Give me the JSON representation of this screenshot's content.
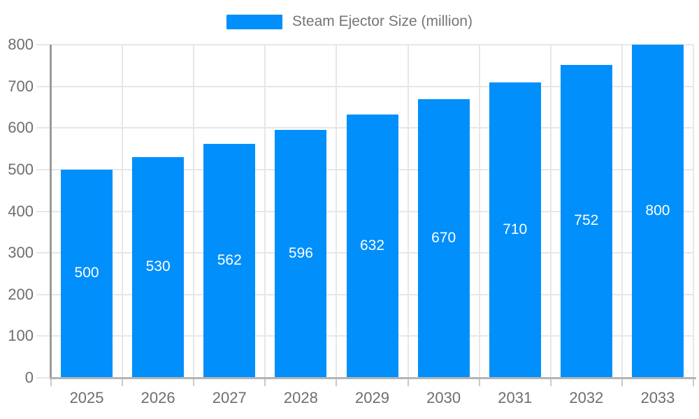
{
  "legend": {
    "label": "Steam Ejector Size (million)"
  },
  "colors": {
    "bar": "#008ffb",
    "grid": "#e7e7e7",
    "y_axis_line": "#9a9a9a",
    "x_axis_line": "#b4b4b4",
    "x_tick": "#c9c9c9",
    "axis_text": "#6e6e6e",
    "legend_text": "#757575",
    "value_text": "#ffffff",
    "background": "#ffffff"
  },
  "chart_data": {
    "type": "bar",
    "title": "Steam Ejector Size (million)",
    "series_name": "Steam Ejector Size (million)",
    "categories": [
      "2025",
      "2026",
      "2027",
      "2028",
      "2029",
      "2030",
      "2031",
      "2032",
      "2033"
    ],
    "values": [
      500,
      530,
      562,
      596,
      632,
      670,
      710,
      752,
      800
    ],
    "value_labels": [
      "500",
      "530",
      "562",
      "596",
      "632",
      "670",
      "710",
      "752",
      "800"
    ],
    "xlabel": "",
    "ylabel": "",
    "ylim": [
      0,
      800
    ],
    "ytick_step": 100,
    "ytick_labels": [
      "0",
      "100",
      "200",
      "300",
      "400",
      "500",
      "600",
      "700",
      "800"
    ],
    "grid": "on",
    "legend_position": "top-center",
    "value_label_position": "center-of-bar"
  }
}
